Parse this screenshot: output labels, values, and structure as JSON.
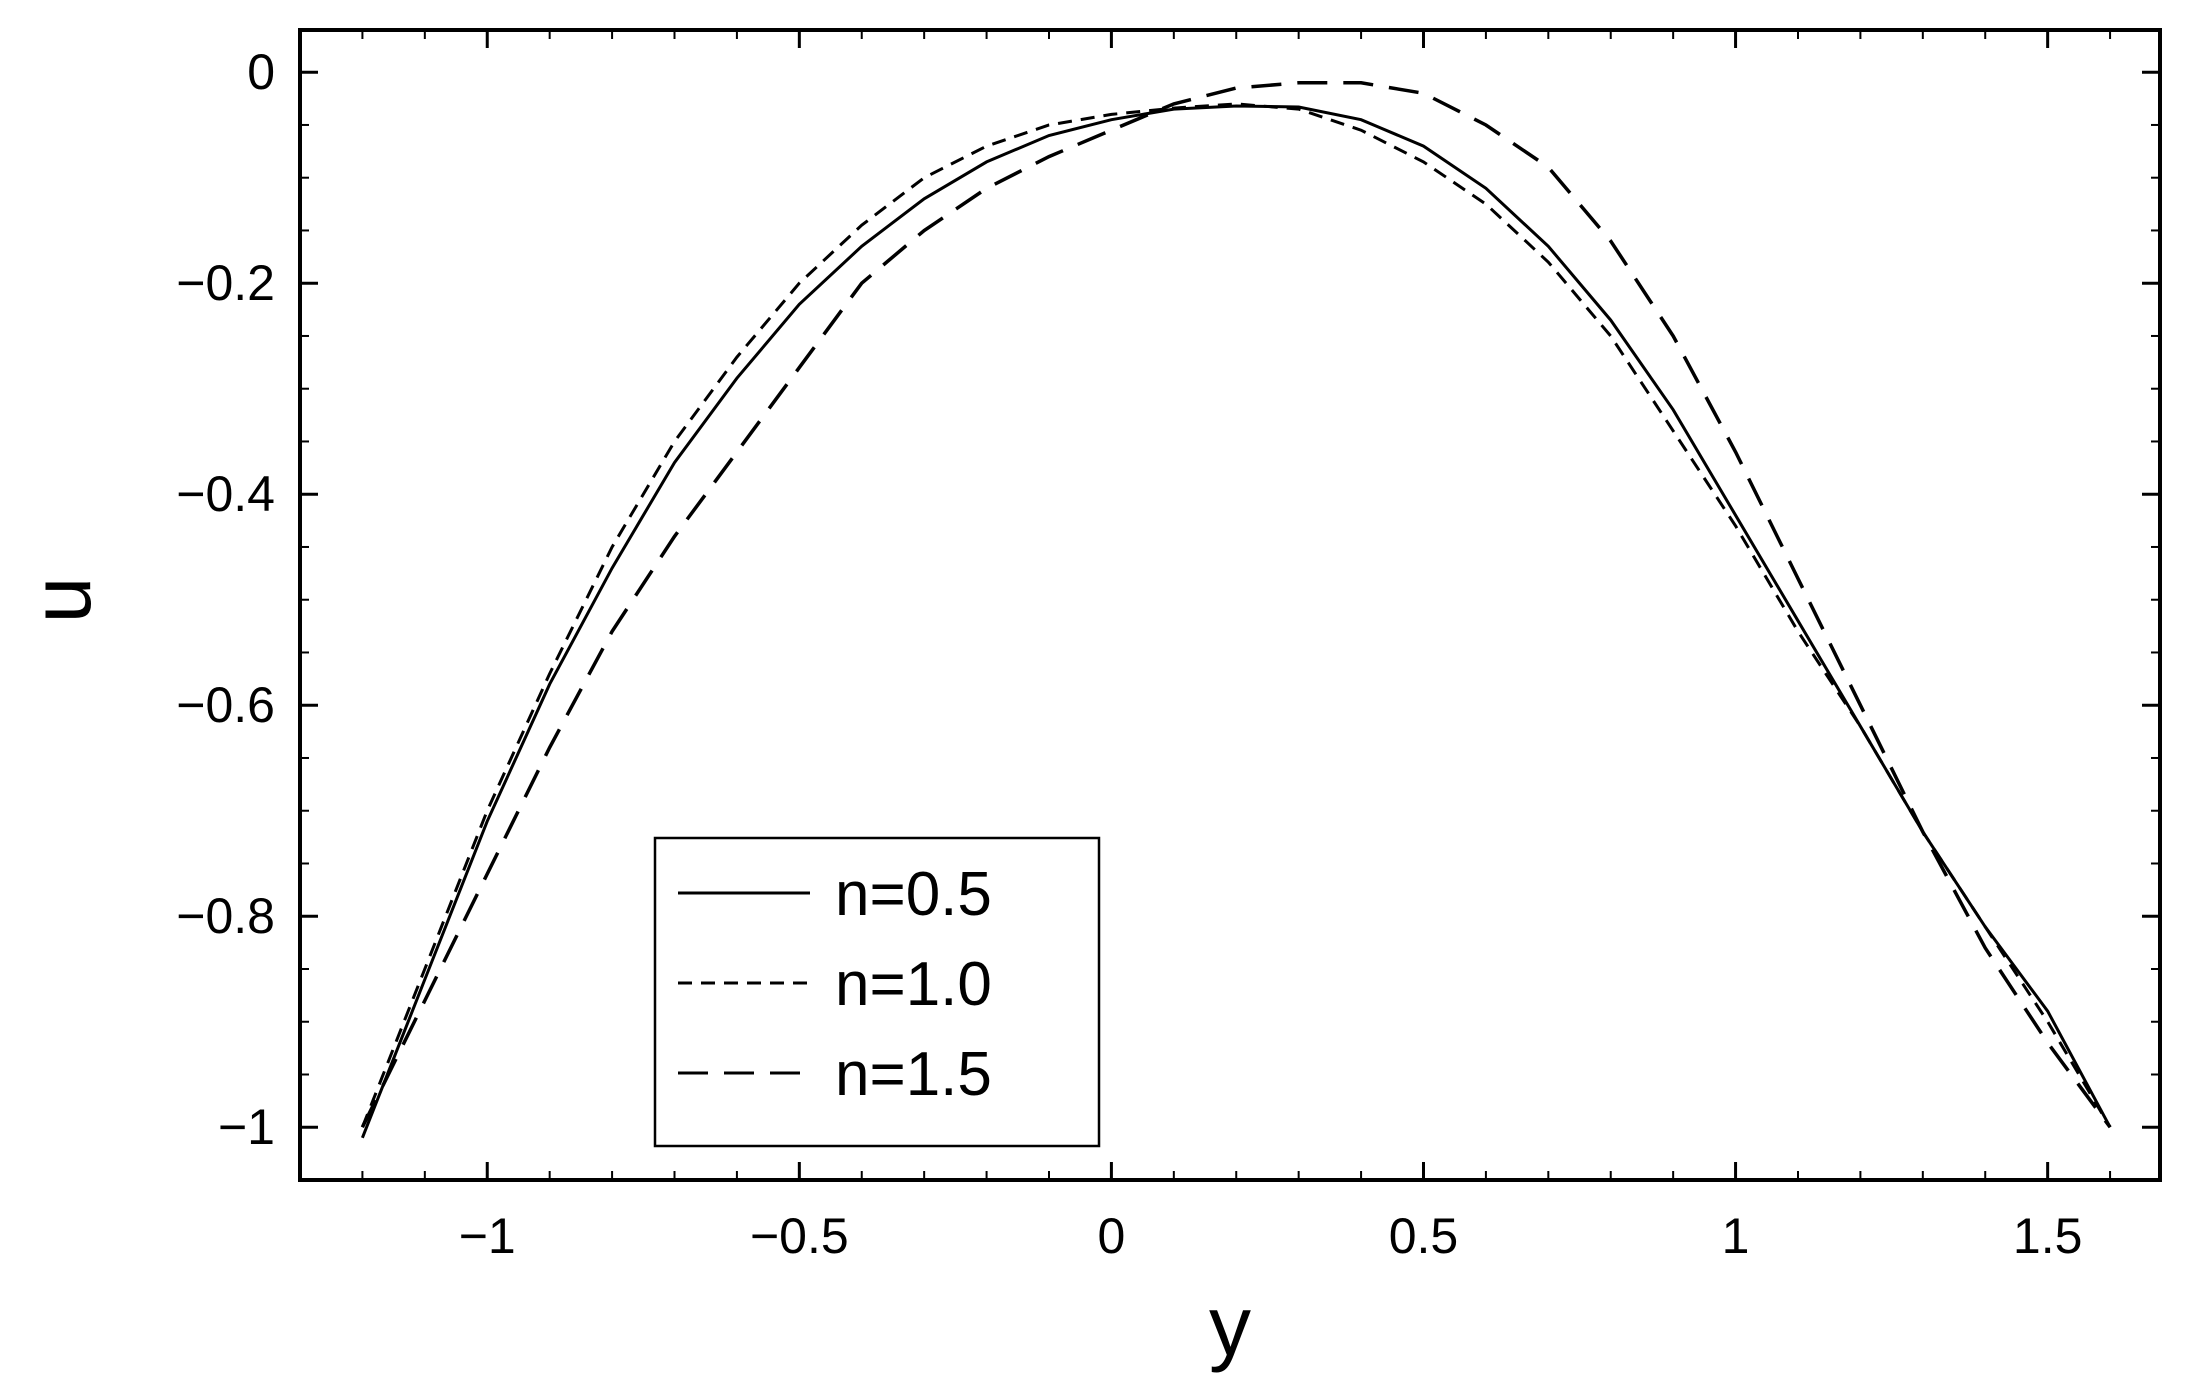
{
  "chart_data": {
    "type": "line",
    "title": "",
    "xlabel": "y",
    "ylabel": "u",
    "xlim": [
      -1.3,
      1.68
    ],
    "ylim": [
      -1.05,
      0.04
    ],
    "grid": false,
    "legend_position": "bottom-left",
    "x_ticks": [
      {
        "value": -1,
        "label": "−1"
      },
      {
        "value": -0.5,
        "label": "−0.5"
      },
      {
        "value": 0,
        "label": "0"
      },
      {
        "value": 0.5,
        "label": "0.5"
      },
      {
        "value": 1,
        "label": "1"
      },
      {
        "value": 1.5,
        "label": "1.5"
      }
    ],
    "y_ticks": [
      {
        "value": 0,
        "label": "0"
      },
      {
        "value": -0.2,
        "label": "−0.2"
      },
      {
        "value": -0.4,
        "label": "−0.4"
      },
      {
        "value": -0.6,
        "label": "−0.6"
      },
      {
        "value": -0.8,
        "label": "−0.8"
      },
      {
        "value": -1,
        "label": "−1"
      }
    ],
    "series": [
      {
        "name": "n=0.5",
        "line_style": "solid",
        "color": "#000000",
        "x": [
          -1.2,
          -1.1,
          -1.0,
          -0.9,
          -0.8,
          -0.7,
          -0.6,
          -0.5,
          -0.4,
          -0.3,
          -0.2,
          -0.1,
          0.0,
          0.1,
          0.2,
          0.3,
          0.4,
          0.5,
          0.6,
          0.7,
          0.8,
          0.9,
          1.0,
          1.1,
          1.2,
          1.3,
          1.4,
          1.5,
          1.6
        ],
        "y": [
          -1.01,
          -0.86,
          -0.71,
          -0.58,
          -0.47,
          -0.37,
          -0.29,
          -0.22,
          -0.165,
          -0.12,
          -0.085,
          -0.06,
          -0.045,
          -0.035,
          -0.032,
          -0.033,
          -0.045,
          -0.07,
          -0.11,
          -0.165,
          -0.235,
          -0.32,
          -0.42,
          -0.52,
          -0.62,
          -0.72,
          -0.81,
          -0.89,
          -1.0
        ]
      },
      {
        "name": "n=1.0",
        "line_style": "short-dash",
        "color": "#000000",
        "x": [
          -1.2,
          -1.1,
          -1.0,
          -0.9,
          -0.8,
          -0.7,
          -0.6,
          -0.5,
          -0.4,
          -0.3,
          -0.2,
          -0.1,
          0.0,
          0.1,
          0.2,
          0.3,
          0.4,
          0.5,
          0.6,
          0.7,
          0.8,
          0.9,
          1.0,
          1.1,
          1.2,
          1.3,
          1.4,
          1.5,
          1.6
        ],
        "y": [
          -1.0,
          -0.85,
          -0.7,
          -0.57,
          -0.45,
          -0.35,
          -0.27,
          -0.2,
          -0.145,
          -0.1,
          -0.07,
          -0.05,
          -0.04,
          -0.034,
          -0.03,
          -0.035,
          -0.055,
          -0.085,
          -0.125,
          -0.18,
          -0.25,
          -0.34,
          -0.43,
          -0.53,
          -0.62,
          -0.72,
          -0.81,
          -0.9,
          -1.0
        ]
      },
      {
        "name": "n=1.5",
        "line_style": "long-dash",
        "color": "#000000",
        "x": [
          -1.2,
          -1.1,
          -1.0,
          -0.9,
          -0.8,
          -0.7,
          -0.6,
          -0.5,
          -0.4,
          -0.3,
          -0.2,
          -0.1,
          0.0,
          0.1,
          0.2,
          0.3,
          0.4,
          0.5,
          0.6,
          0.7,
          0.8,
          0.9,
          1.0,
          1.1,
          1.2,
          1.3,
          1.4,
          1.5,
          1.6
        ],
        "y": [
          -1.0,
          -0.88,
          -0.76,
          -0.64,
          -0.53,
          -0.44,
          -0.36,
          -0.28,
          -0.2,
          -0.15,
          -0.11,
          -0.08,
          -0.055,
          -0.03,
          -0.015,
          -0.01,
          -0.01,
          -0.02,
          -0.05,
          -0.09,
          -0.16,
          -0.25,
          -0.36,
          -0.48,
          -0.6,
          -0.72,
          -0.83,
          -0.92,
          -1.0
        ]
      }
    ]
  },
  "legend": {
    "items": [
      {
        "label": "n=0.5",
        "line_style": "solid"
      },
      {
        "label": "n=1.0",
        "line_style": "short-dash"
      },
      {
        "label": "n=1.5",
        "line_style": "long-dash"
      }
    ]
  }
}
